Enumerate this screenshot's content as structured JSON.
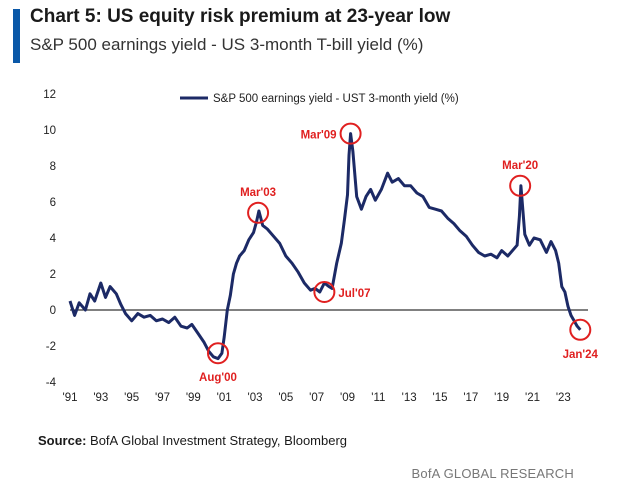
{
  "header": {
    "title": "Chart 5: US equity risk premium at 23-year low",
    "subtitle": "S&P 500 earnings yield - US 3-month T-bill yield (%)"
  },
  "source": {
    "label": "Source:",
    "text": " BofA Global Investment Strategy, Bloomberg"
  },
  "footer": {
    "brand": "BofA GLOBAL RESEARCH"
  },
  "colors": {
    "accent": "#0a58a8",
    "series": "#1c2a66",
    "annotation": "#e02020",
    "axis": "#000000"
  },
  "chart_data": {
    "type": "line",
    "title": "",
    "xlabel": "",
    "ylabel": "",
    "grid": false,
    "legend": "top-center",
    "xlim": [
      1991,
      2024.6
    ],
    "ylim": [
      -4,
      12
    ],
    "yticks": [
      -4,
      -2,
      0,
      2,
      4,
      6,
      8,
      10,
      12
    ],
    "xtick_values": [
      1991,
      1993,
      1995,
      1997,
      1999,
      2001,
      2003,
      2005,
      2007,
      2009,
      2011,
      2013,
      2015,
      2017,
      2019,
      2021,
      2023
    ],
    "xtick_labels": [
      "'91",
      "'93",
      "'95",
      "'97",
      "'99",
      "'01",
      "'03",
      "'05",
      "'07",
      "'09",
      "'11",
      "'13",
      "'15",
      "'17",
      "'19",
      "'21",
      "'23"
    ],
    "series": [
      {
        "name": "S&P 500 earnings yield - UST 3-month yield (%)",
        "x": [
          1991.0,
          1991.3,
          1991.6,
          1992.0,
          1992.3,
          1992.6,
          1993.0,
          1993.3,
          1993.6,
          1994.0,
          1994.3,
          1994.6,
          1995.0,
          1995.4,
          1995.8,
          1996.2,
          1996.6,
          1997.0,
          1997.4,
          1997.8,
          1998.2,
          1998.6,
          1998.9,
          1999.3,
          1999.7,
          2000.0,
          2000.3,
          2000.6,
          2000.85,
          2001.0,
          2001.2,
          2001.4,
          2001.6,
          2001.8,
          2002.0,
          2002.3,
          2002.6,
          2002.9,
          2003.1,
          2003.25,
          2003.5,
          2003.8,
          2004.2,
          2004.6,
          2005.0,
          2005.4,
          2005.8,
          2006.2,
          2006.6,
          2006.9,
          2007.2,
          2007.5,
          2007.8,
          2008.0,
          2008.3,
          2008.6,
          2008.8,
          2009.0,
          2009.1,
          2009.2,
          2009.35,
          2009.6,
          2009.9,
          2010.2,
          2010.5,
          2010.8,
          2011.2,
          2011.6,
          2011.9,
          2012.3,
          2012.7,
          2013.1,
          2013.5,
          2013.9,
          2014.3,
          2014.7,
          2015.1,
          2015.5,
          2015.9,
          2016.3,
          2016.7,
          2017.1,
          2017.5,
          2017.9,
          2018.3,
          2018.7,
          2019.0,
          2019.4,
          2019.8,
          2020.0,
          2020.15,
          2020.25,
          2020.5,
          2020.8,
          2021.1,
          2021.5,
          2021.9,
          2022.2,
          2022.5,
          2022.7,
          2022.9,
          2023.1,
          2023.3,
          2023.5,
          2023.7,
          2023.9,
          2024.1
        ],
        "y": [
          0.5,
          -0.3,
          0.4,
          0.0,
          0.9,
          0.5,
          1.5,
          0.7,
          1.3,
          0.9,
          0.3,
          -0.2,
          -0.6,
          -0.2,
          -0.4,
          -0.3,
          -0.6,
          -0.5,
          -0.7,
          -0.4,
          -0.9,
          -1.0,
          -0.8,
          -1.3,
          -1.8,
          -2.3,
          -2.6,
          -2.7,
          -2.4,
          -1.5,
          0.0,
          0.8,
          2.0,
          2.6,
          3.0,
          3.3,
          3.9,
          4.3,
          4.9,
          5.5,
          4.7,
          4.5,
          4.1,
          3.7,
          3.0,
          2.6,
          2.1,
          1.5,
          1.1,
          1.2,
          1.0,
          1.5,
          1.3,
          1.2,
          2.6,
          3.7,
          5.0,
          6.4,
          8.6,
          9.8,
          8.8,
          6.3,
          5.6,
          6.3,
          6.7,
          6.1,
          6.7,
          7.6,
          7.1,
          7.3,
          6.9,
          6.9,
          6.5,
          6.3,
          5.7,
          5.6,
          5.5,
          5.1,
          4.8,
          4.4,
          4.1,
          3.6,
          3.2,
          3.0,
          3.1,
          2.9,
          3.3,
          3.0,
          3.4,
          3.6,
          5.2,
          6.9,
          4.2,
          3.6,
          4.0,
          3.9,
          3.2,
          3.8,
          3.3,
          2.6,
          1.3,
          1.0,
          0.2,
          -0.3,
          -0.6,
          -0.9,
          -1.1
        ]
      }
    ],
    "annotations": [
      {
        "label": "Aug'00",
        "x": 2000.6,
        "y": -2.4,
        "label_pos": "below"
      },
      {
        "label": "Mar'03",
        "x": 2003.2,
        "y": 5.4,
        "label_pos": "above"
      },
      {
        "label": "Jul'07",
        "x": 2007.5,
        "y": 1.0,
        "label_pos": "right"
      },
      {
        "label": "Mar'09",
        "x": 2009.2,
        "y": 9.8,
        "label_pos": "left"
      },
      {
        "label": "Mar'20",
        "x": 2020.2,
        "y": 6.9,
        "label_pos": "above"
      },
      {
        "label": "Jan'24",
        "x": 2024.1,
        "y": -1.1,
        "label_pos": "below"
      }
    ]
  }
}
